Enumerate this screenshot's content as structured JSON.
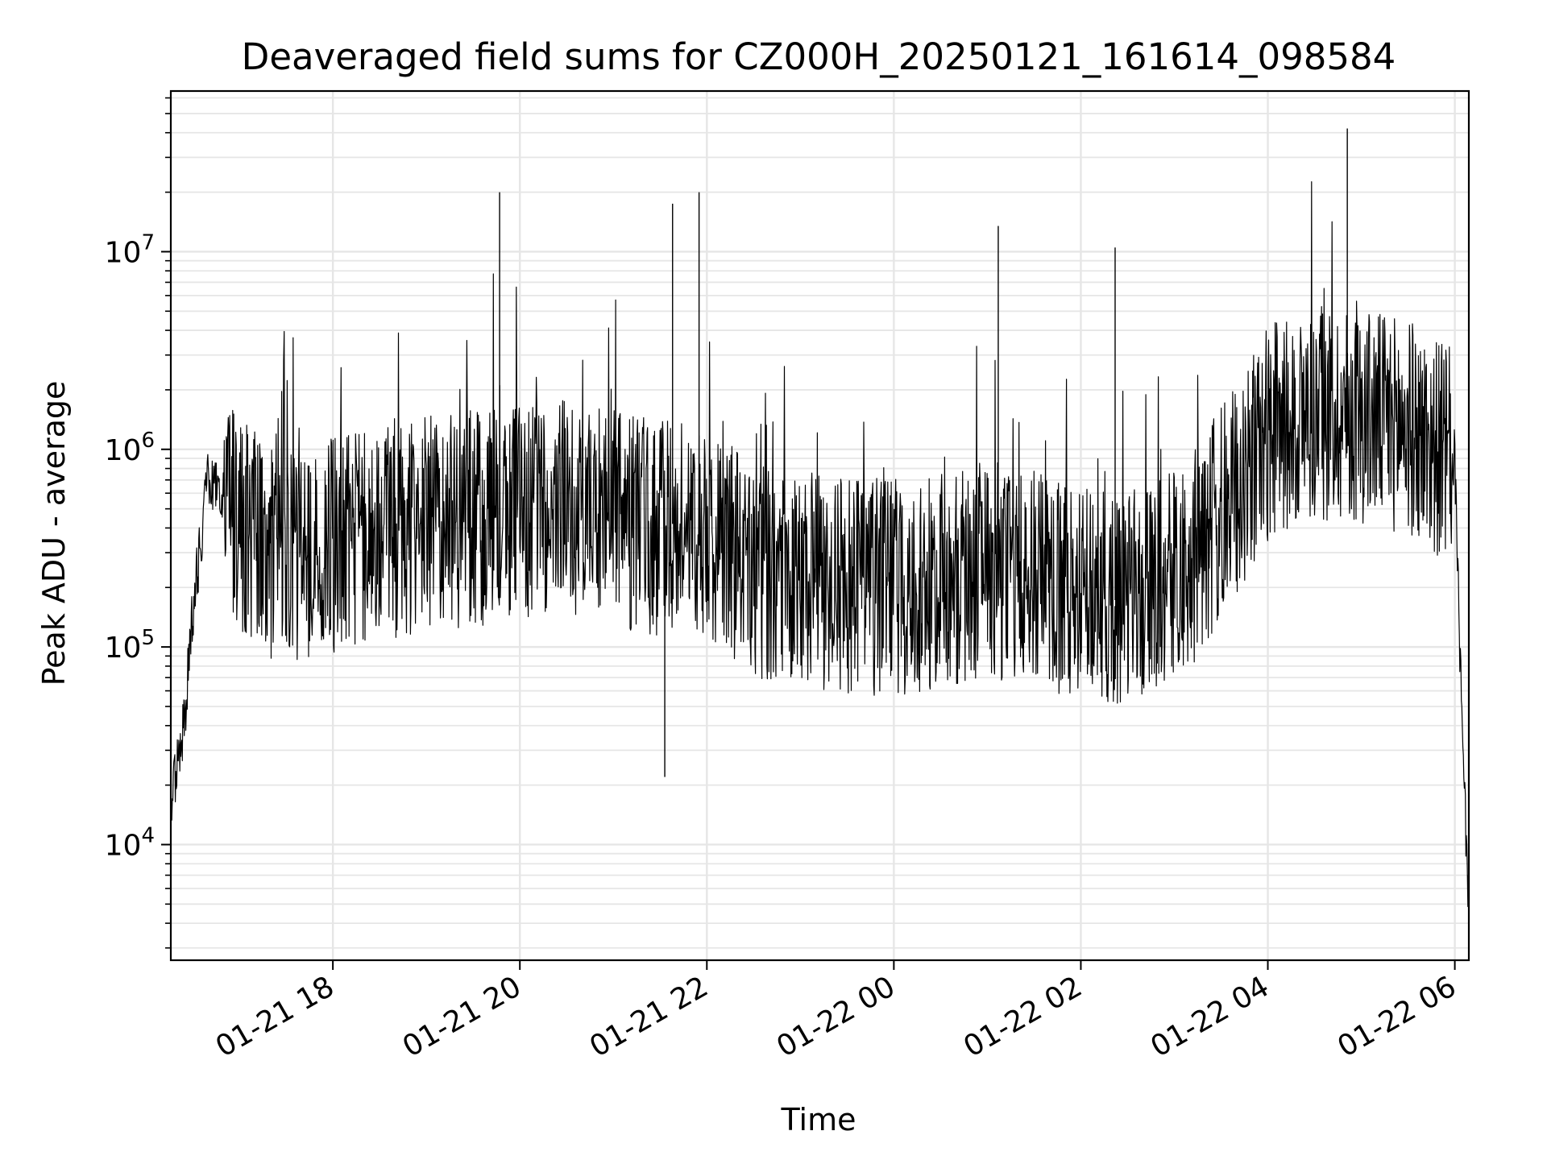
{
  "chart_data": {
    "type": "line",
    "title": "Deaveraged field sums for CZ000H_20250121_161614_098584",
    "xlabel": "Time",
    "ylabel": "Peak ADU - average",
    "yscale": "log",
    "ylim": [
      2600,
      65000000
    ],
    "xlim": [
      "2025-01-21 16:16",
      "2025-01-22 06:09"
    ],
    "grid": true,
    "legend": "none",
    "line_color": "#000000",
    "grid_color": "#e6e6e6",
    "x_ticks": [
      {
        "label": "01-21 18",
        "t": "2025-01-21 18:00"
      },
      {
        "label": "01-21 20",
        "t": "2025-01-21 20:00"
      },
      {
        "label": "01-21 22",
        "t": "2025-01-21 22:00"
      },
      {
        "label": "01-22 00",
        "t": "2025-01-22 00:00"
      },
      {
        "label": "01-22 02",
        "t": "2025-01-22 02:00"
      },
      {
        "label": "01-22 04",
        "t": "2025-01-22 04:00"
      },
      {
        "label": "01-22 06",
        "t": "2025-01-22 06:00"
      }
    ],
    "y_ticks": [
      {
        "base": "10",
        "exp": "4",
        "value": 10000
      },
      {
        "base": "10",
        "exp": "5",
        "value": 100000
      },
      {
        "base": "10",
        "exp": "6",
        "value": 1000000
      },
      {
        "base": "10",
        "exp": "7",
        "value": 10000000
      }
    ],
    "series": [
      {
        "x": [
          "2025-01-21 16:16",
          "2025-01-21 16:20",
          "2025-01-21 16:25",
          "2025-01-21 16:30",
          "2025-01-21 16:40",
          "2025-01-21 16:50",
          "2025-01-21 17:00",
          "2025-01-21 17:20",
          "2025-01-21 17:40",
          "2025-01-21 18:00",
          "2025-01-21 18:30",
          "2025-01-21 19:00",
          "2025-01-21 19:30",
          "2025-01-21 20:00",
          "2025-01-21 20:30",
          "2025-01-21 21:00",
          "2025-01-21 21:30",
          "2025-01-21 21:50",
          "2025-01-21 22:10",
          "2025-01-21 22:30",
          "2025-01-21 23:00",
          "2025-01-21 23:30",
          "2025-01-22 00:00",
          "2025-01-22 00:30",
          "2025-01-22 01:00",
          "2025-01-22 01:30",
          "2025-01-22 02:00",
          "2025-01-22 02:30",
          "2025-01-22 03:00",
          "2025-01-22 03:20",
          "2025-01-22 03:40",
          "2025-01-22 04:00",
          "2025-01-22 04:30",
          "2025-01-22 05:00",
          "2025-01-22 05:30",
          "2025-01-22 05:50",
          "2025-01-22 06:00",
          "2025-01-22 06:05",
          "2025-01-22 06:09"
        ],
        "y": [
          15000,
          25000,
          45000,
          150000,
          700000,
          600000,
          400000,
          300000,
          280000,
          320000,
          380000,
          420000,
          450000,
          480000,
          500000,
          450000,
          400000,
          450000,
          350000,
          250000,
          220000,
          200000,
          200000,
          220000,
          250000,
          220000,
          180000,
          170000,
          220000,
          350000,
          600000,
          1200000,
          1500000,
          1500000,
          1300000,
          1000000,
          900000,
          30000,
          5000
        ],
        "spikes": [
          {
            "t": "2025-01-21 19:47",
            "y": 20000000
          },
          {
            "t": "2025-01-21 21:38",
            "y": 17500000
          },
          {
            "t": "2025-01-21 21:55",
            "y": 20000000
          },
          {
            "t": "2025-01-22 01:07",
            "y": 13500000
          },
          {
            "t": "2025-01-22 02:22",
            "y": 10500000
          },
          {
            "t": "2025-01-22 04:51",
            "y": 42000000
          },
          {
            "t": "2025-01-21 21:33",
            "y": 22000
          }
        ]
      }
    ]
  }
}
